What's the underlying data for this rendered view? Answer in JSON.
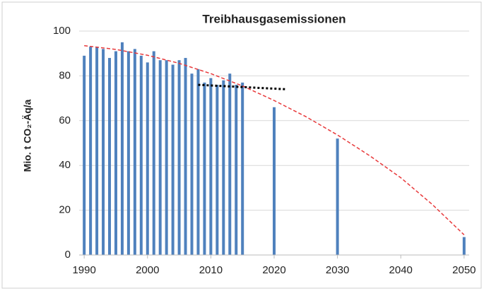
{
  "chart_data": {
    "type": "bar",
    "title": "Treibhausgasemissionen",
    "y_label": "Mio. t CO₂-Äq/a",
    "xlim": [
      1989.2,
      2050.8
    ],
    "xticks": [
      1990,
      2000,
      2010,
      2020,
      2030,
      2040,
      2050
    ],
    "ylim": [
      0,
      100
    ],
    "yticks": [
      0,
      20,
      40,
      60,
      80,
      100
    ],
    "grid": true,
    "series": [
      {
        "type": "bar",
        "color": "#4f81bd",
        "x": [
          1990,
          1991,
          1992,
          1993,
          1994,
          1995,
          1996,
          1997,
          1998,
          1999,
          2000,
          2001,
          2002,
          2003,
          2004,
          2005,
          2006,
          2007,
          2008,
          2009,
          2010,
          2011,
          2012,
          2013,
          2014,
          2015,
          2020,
          2030,
          2050
        ],
        "values": [
          89,
          93,
          93,
          92,
          88,
          91,
          95,
          91,
          92,
          89,
          86,
          91,
          87,
          87,
          85,
          87,
          88,
          81,
          83,
          77,
          79,
          76,
          78,
          81,
          76,
          77,
          66,
          52,
          8
        ]
      },
      {
        "type": "line",
        "color": "#e8393b",
        "style": "dashed",
        "x": [
          1990,
          1995,
          2000,
          2005,
          2010,
          2015,
          2020,
          2025,
          2030,
          2035,
          2040,
          2045,
          2050
        ],
        "values": [
          93.5,
          91.8,
          89.2,
          85.6,
          81,
          75.5,
          69,
          61.8,
          53.6,
          44.5,
          34.5,
          22.5,
          9
        ]
      },
      {
        "type": "line",
        "color": "#000000",
        "style": "dotted",
        "x": [
          2008,
          2022
        ],
        "values": [
          76,
          74
        ]
      }
    ]
  }
}
